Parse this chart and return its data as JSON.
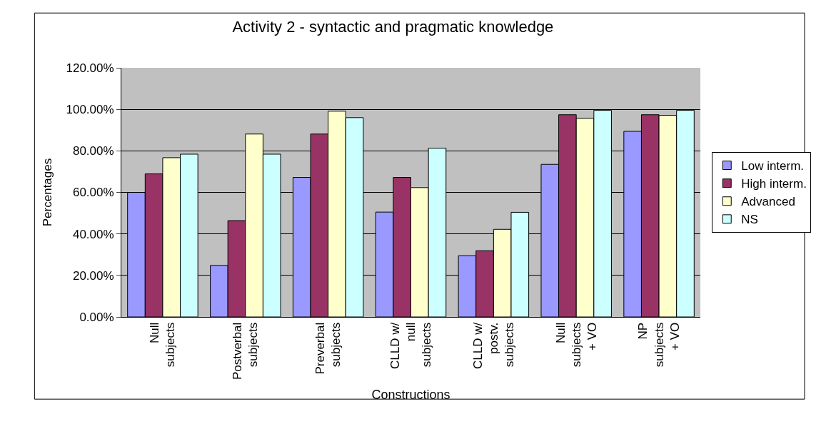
{
  "chart_data": {
    "type": "bar",
    "title": "Activity 2 - syntactic and pragmatic knowledge",
    "xlabel": "Constructions",
    "ylabel": "Percentages",
    "categories": [
      "Null\nsubjects",
      "Postverbal\nsubjects",
      "Preverbal\nsubjects",
      "CLLD w/\nnull\nsubjects",
      "CLLD w/\npostv.\nsubjects",
      "Null\nsubjects\n+ VO",
      "NP\nsubjects\n+ VO"
    ],
    "series": [
      {
        "name": "Low interm.",
        "color": "#9999ff",
        "values": [
          60.0,
          24.8,
          67.2,
          50.5,
          29.5,
          73.5,
          89.4
        ]
      },
      {
        "name": "High interm.",
        "color": "#993366",
        "values": [
          68.9,
          46.4,
          88.1,
          67.2,
          31.9,
          97.4,
          97.4
        ]
      },
      {
        "name": "Advanced",
        "color": "#ffffcc",
        "values": [
          76.7,
          88.1,
          99.1,
          62.3,
          42.2,
          95.7,
          97.1
        ]
      },
      {
        "name": "NS",
        "color": "#ccffff",
        "values": [
          78.4,
          78.4,
          96.0,
          81.3,
          50.4,
          99.5,
          99.5
        ]
      }
    ],
    "ylim": [
      0,
      120
    ],
    "yticks": [
      {
        "value": 0,
        "label": "0.00%"
      },
      {
        "value": 20,
        "label": "20.00%"
      },
      {
        "value": 40,
        "label": "40.00%"
      },
      {
        "value": 60,
        "label": "60.00%"
      },
      {
        "value": 80,
        "label": "80.00%"
      },
      {
        "value": 100,
        "label": "100.00%"
      },
      {
        "value": 120,
        "label": "120.00%"
      }
    ],
    "grid": "y",
    "legend": "right"
  }
}
